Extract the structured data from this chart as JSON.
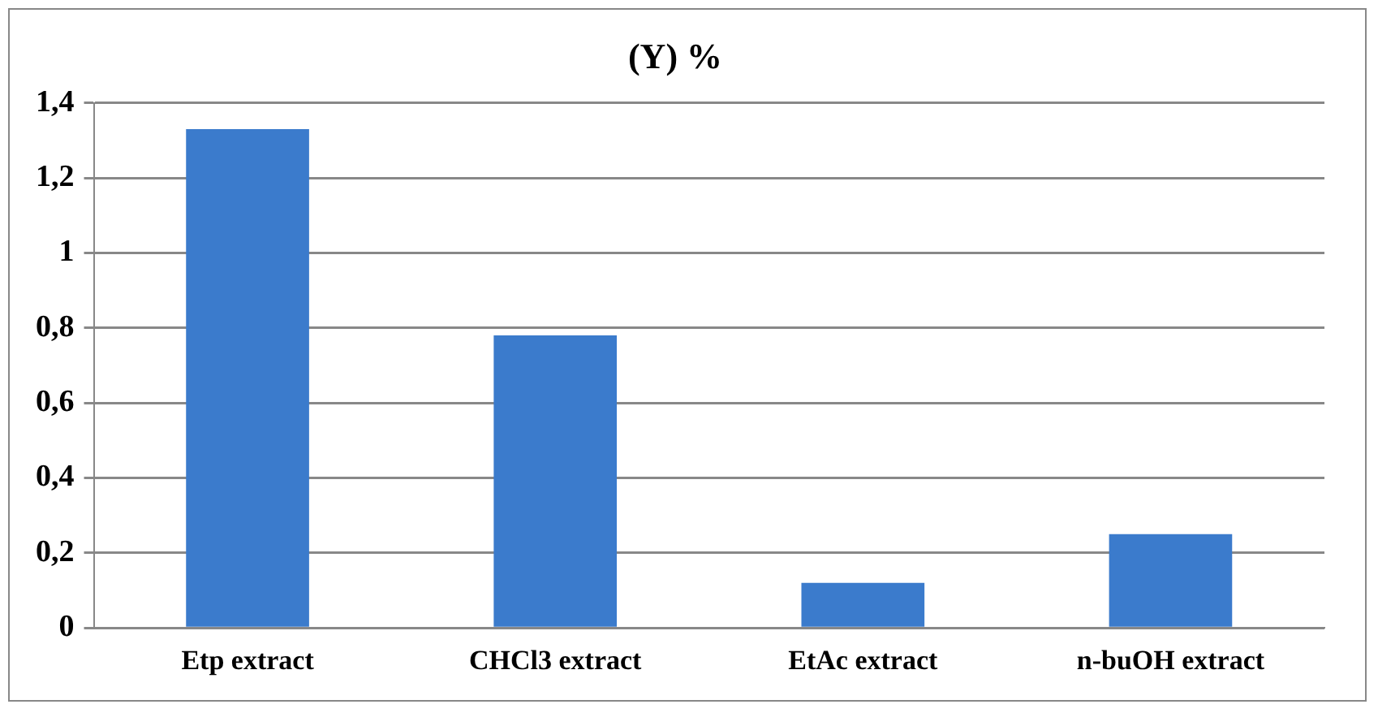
{
  "chart_data": {
    "type": "bar",
    "title": "(Y) %",
    "categories": [
      "Etp extract",
      "CHCl3 extract",
      "EtAc extract",
      "n-buOH extract"
    ],
    "values": [
      1.33,
      0.78,
      0.12,
      0.25
    ],
    "color": "#3b7bcc",
    "ylim": [
      0,
      1.4
    ],
    "yticks": [
      0,
      {
        "value": 0.2,
        "label": "0,2"
      },
      {
        "value": 0.4,
        "label": "0,4"
      },
      {
        "value": 0.6,
        "label": "0,6"
      },
      {
        "value": 0.8,
        "label": "0,8"
      },
      1,
      {
        "value": 1.2,
        "label": "1,2"
      },
      {
        "value": 1.4,
        "label": "1,4"
      }
    ],
    "grid": "y",
    "legend": false
  }
}
